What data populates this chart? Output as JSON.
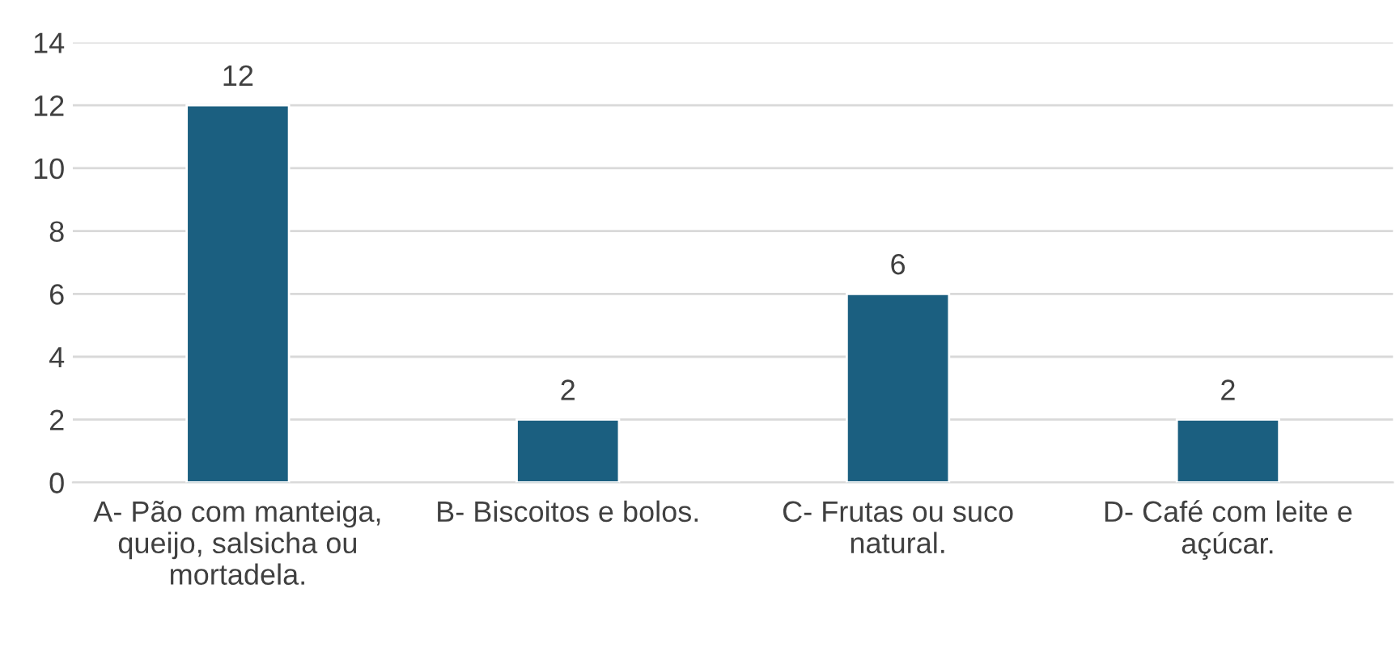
{
  "chart_data": {
    "type": "bar",
    "categories": [
      "A- Pão com manteiga,\nqueijo, salsicha ou\nmortadela.",
      "B- Biscoitos e bolos.",
      "C- Frutas ou suco\nnatural.",
      "D- Café com leite e\naçúcar."
    ],
    "values": [
      12,
      2,
      6,
      2
    ],
    "color": "#1b5f80",
    "ylim": [
      0,
      14
    ],
    "yticks": [
      0,
      2,
      4,
      6,
      8,
      10,
      12,
      14
    ],
    "grid": "y",
    "data_labels": true
  }
}
